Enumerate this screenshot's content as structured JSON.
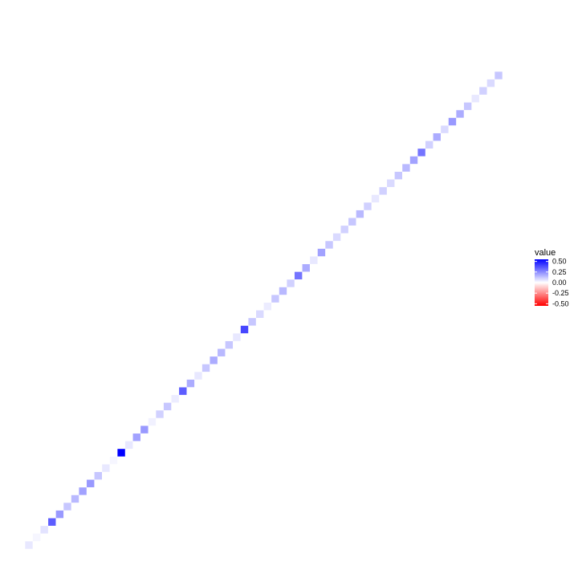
{
  "chart_data": {
    "type": "heatmap",
    "layout": "diagonal",
    "title": "",
    "xlabel": "",
    "ylabel": "",
    "axes_visible": false,
    "grid": false,
    "n_cells": 62,
    "diagonal_values": [
      0.05,
      0.02,
      0.06,
      0.35,
      0.22,
      0.12,
      0.15,
      0.2,
      0.22,
      0.12,
      0.05,
      0.02,
      0.55,
      0.05,
      0.2,
      0.22,
      0.03,
      0.1,
      0.12,
      0.04,
      0.35,
      0.18,
      0.05,
      0.12,
      0.18,
      0.15,
      0.12,
      0.05,
      0.4,
      0.12,
      0.08,
      0.04,
      0.12,
      0.15,
      0.1,
      0.3,
      0.18,
      0.05,
      0.2,
      0.12,
      0.08,
      0.1,
      0.12,
      0.15,
      0.1,
      0.05,
      0.1,
      0.08,
      0.12,
      0.15,
      0.2,
      0.3,
      0.1,
      0.18,
      0.08,
      0.22,
      0.18,
      0.12,
      0.05,
      0.1,
      0.08,
      0.12
    ],
    "colors": {
      "low": "#ff0000",
      "mid": "#ffffff",
      "high": "#0000ff"
    },
    "limits": [
      -0.55,
      0.55
    ],
    "legend": {
      "title": "value",
      "position": "right",
      "breaks": [
        0.5,
        0.25,
        0.0,
        -0.25,
        -0.5
      ],
      "labels": [
        "0.50",
        "0.25",
        "0.00",
        "-0.25",
        "-0.50"
      ]
    }
  }
}
